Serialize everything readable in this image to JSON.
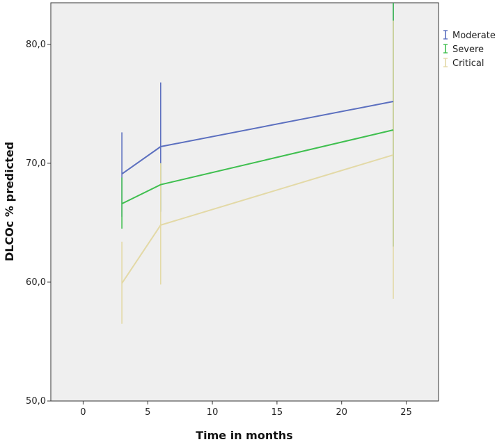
{
  "chart_data": {
    "type": "line",
    "title": "",
    "xlabel": "Time in months",
    "ylabel": "DLCOc % predicted",
    "xlim": [
      -2.5,
      27.5
    ],
    "ylim": [
      50,
      83.5
    ],
    "x_ticks": [
      0,
      5,
      10,
      15,
      20,
      25
    ],
    "x_tick_labels": [
      "0",
      "5",
      "10",
      "15",
      "20",
      "25"
    ],
    "y_ticks": [
      50,
      60,
      70,
      80
    ],
    "y_tick_labels": [
      "50,0",
      "60,0",
      "70,0",
      "80,0"
    ],
    "grid": false,
    "legend_position": "right-top",
    "background_color": "#efefef",
    "series": [
      {
        "name": "Moderate",
        "color": "#5b6fbf",
        "x": [
          3,
          6,
          24
        ],
        "y": [
          69.1,
          71.4,
          75.2
        ],
        "error_low": [
          65.5,
          65.9,
          63.0
        ],
        "error_high": [
          72.6,
          76.8,
          83.5
        ]
      },
      {
        "name": "Severe",
        "color": "#3fbf4f",
        "x": [
          3,
          6,
          24
        ],
        "y": [
          66.6,
          68.2,
          72.8
        ],
        "error_low": [
          64.5,
          66.0,
          63.0
        ],
        "error_high": [
          68.8,
          70.0,
          83.5
        ]
      },
      {
        "name": "Critical",
        "color": "#e3d9a6",
        "x": [
          3,
          6,
          24
        ],
        "y": [
          59.9,
          64.8,
          70.7
        ],
        "error_low": [
          56.5,
          59.8,
          58.6
        ],
        "error_high": [
          63.4,
          70.0,
          82.0
        ]
      }
    ]
  }
}
